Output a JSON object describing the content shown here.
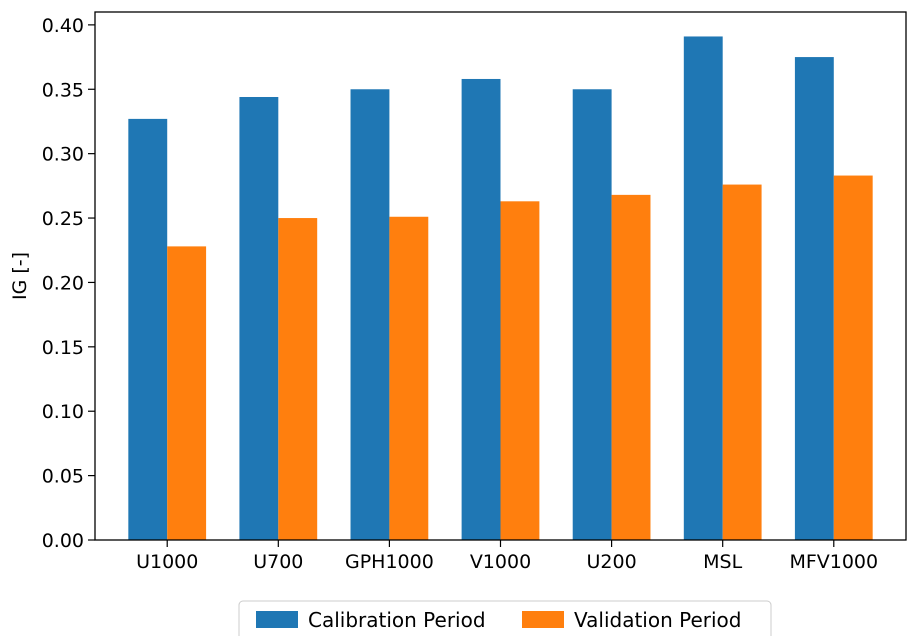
{
  "chart_data": {
    "type": "bar",
    "title": "",
    "xlabel": "",
    "ylabel": "IG [-]",
    "ylim": [
      0,
      0.41
    ],
    "yticks": [
      "0.00",
      "0.05",
      "0.10",
      "0.15",
      "0.20",
      "0.25",
      "0.30",
      "0.35",
      "0.40"
    ],
    "categories": [
      "U1000",
      "U700",
      "GPH1000",
      "V1000",
      "U200",
      "MSL",
      "MFV1000"
    ],
    "series": [
      {
        "name": "Calibration Period",
        "color": "#1f77b4",
        "values": [
          0.327,
          0.344,
          0.35,
          0.358,
          0.35,
          0.391,
          0.375
        ]
      },
      {
        "name": "Validation Period",
        "color": "#ff7f0e",
        "values": [
          0.228,
          0.25,
          0.251,
          0.263,
          0.268,
          0.276,
          0.283
        ]
      }
    ],
    "grid": false,
    "legend_position": "bottom-center"
  }
}
